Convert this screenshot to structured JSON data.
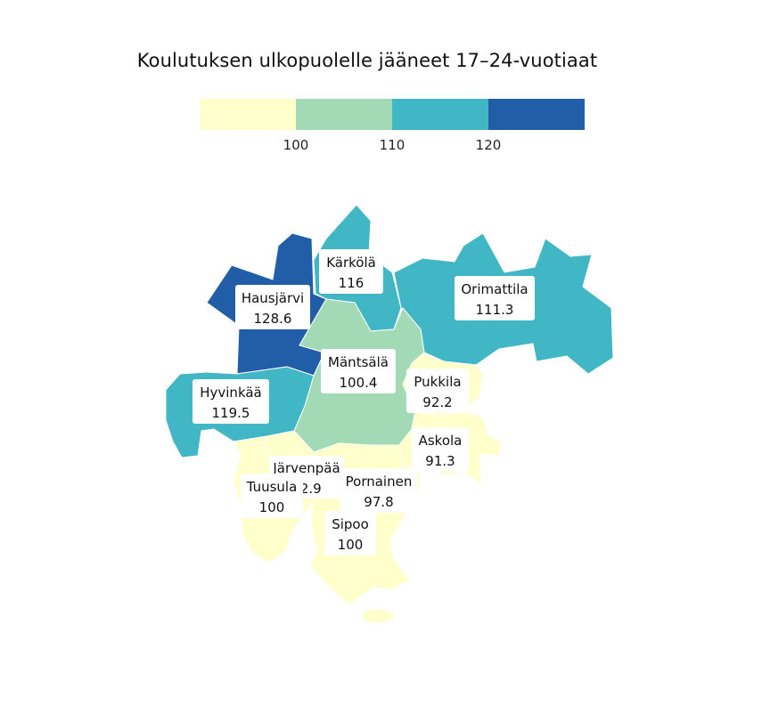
{
  "title": "Koulutuksen ulkopuolelle jääneet 17–24-vuotiaat",
  "legend": {
    "colors": [
      "#ffffcc",
      "#a1dab4",
      "#41b6c4",
      "#225ea8"
    ],
    "ticks": [
      "100",
      "110",
      "120"
    ]
  },
  "municipalities": [
    {
      "key": "karkola",
      "name": "Kärkölä",
      "value": "116",
      "color": "#41b6c4"
    },
    {
      "key": "orimattila",
      "name": "Orimattila",
      "value": "111.3",
      "color": "#41b6c4"
    },
    {
      "key": "hausjarvi",
      "name": "Hausjärvi",
      "value": "128.6",
      "color": "#225ea8"
    },
    {
      "key": "mantsala",
      "name": "Mäntsälä",
      "value": "100.4",
      "color": "#a1dab4"
    },
    {
      "key": "hyvinkaa",
      "name": "Hyvinkää",
      "value": "119.5",
      "color": "#41b6c4"
    },
    {
      "key": "pukkila",
      "name": "Pukkila",
      "value": "92.2",
      "color": "#ffffcc"
    },
    {
      "key": "askola",
      "name": "Askola",
      "value": "91.3",
      "color": "#ffffcc"
    },
    {
      "key": "jarvenpaa",
      "name": "Järvenpää",
      "value": "92.9",
      "color": "#ffffcc"
    },
    {
      "key": "pornainen",
      "name": "Pornainen",
      "value": "97.8",
      "color": "#ffffcc"
    },
    {
      "key": "tuusula",
      "name": "Tuusula",
      "value": "100",
      "color": "#ffffcc"
    },
    {
      "key": "sipoo",
      "name": "Sipoo",
      "value": "100",
      "color": "#ffffcc"
    }
  ]
}
